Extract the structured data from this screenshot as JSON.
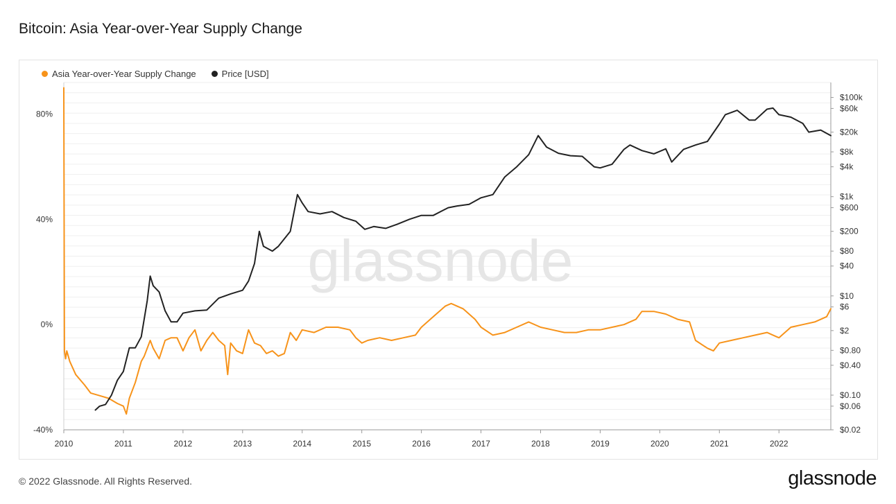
{
  "title": "Bitcoin: Asia Year-over-Year Supply Change",
  "footer": {
    "copyright": "© 2022 Glassnode. All Rights Reserved.",
    "brand": "glassnode"
  },
  "watermark": "glassnode",
  "chart_data": {
    "type": "line",
    "legend_position": "top-left",
    "grid": true,
    "x_ticks": [
      "2010",
      "2011",
      "2012",
      "2013",
      "2014",
      "2015",
      "2016",
      "2017",
      "2018",
      "2019",
      "2020",
      "2021",
      "2022"
    ],
    "x_range": [
      2010.0,
      2022.87
    ],
    "y_left": {
      "ticks": [
        "80%",
        "40%",
        "0%",
        "-40%"
      ],
      "tick_values": [
        80,
        40,
        0,
        -40
      ],
      "range": [
        -40,
        92
      ]
    },
    "y_right": {
      "scale": "log",
      "ticks": [
        "$100k",
        "$60k",
        "$20k",
        "$8k",
        "$4k",
        "$1k",
        "$600",
        "$200",
        "$80",
        "$40",
        "$10",
        "$6",
        "$2",
        "$0.80",
        "$0.40",
        "$0.10",
        "$0.06",
        "$0.02"
      ],
      "tick_values": [
        100000,
        60000,
        20000,
        8000,
        4000,
        1000,
        600,
        200,
        80,
        40,
        10,
        6,
        2,
        0.8,
        0.4,
        0.1,
        0.06,
        0.02
      ],
      "range": [
        0.02,
        200000
      ]
    },
    "series": [
      {
        "name": "Asia Year-over-Year Supply Change",
        "color": "#f7931a",
        "axis": "left",
        "x": [
          2010.0,
          2010.01,
          2010.03,
          2010.05,
          2010.1,
          2010.2,
          2010.35,
          2010.45,
          2010.6,
          2010.75,
          2010.9,
          2011.0,
          2011.05,
          2011.1,
          2011.2,
          2011.3,
          2011.35,
          2011.45,
          2011.5,
          2011.6,
          2011.7,
          2011.8,
          2011.9,
          2012.0,
          2012.1,
          2012.2,
          2012.3,
          2012.4,
          2012.5,
          2012.6,
          2012.7,
          2012.75,
          2012.8,
          2012.9,
          2013.0,
          2013.1,
          2013.2,
          2013.3,
          2013.4,
          2013.5,
          2013.6,
          2013.7,
          2013.8,
          2013.9,
          2014.0,
          2014.2,
          2014.4,
          2014.6,
          2014.8,
          2014.9,
          2015.0,
          2015.1,
          2015.3,
          2015.5,
          2015.7,
          2015.9,
          2016.0,
          2016.2,
          2016.4,
          2016.5,
          2016.7,
          2016.9,
          2017.0,
          2017.2,
          2017.4,
          2017.6,
          2017.8,
          2018.0,
          2018.2,
          2018.4,
          2018.6,
          2018.8,
          2019.0,
          2019.2,
          2019.4,
          2019.6,
          2019.7,
          2019.9,
          2020.1,
          2020.3,
          2020.5,
          2020.6,
          2020.8,
          2020.9,
          2021.0,
          2021.2,
          2021.4,
          2021.6,
          2021.8,
          2021.9,
          2022.0,
          2022.2,
          2022.4,
          2022.6,
          2022.8,
          2022.87
        ],
        "y": [
          90,
          -10,
          -13,
          -10,
          -14,
          -19,
          -23,
          -26,
          -27,
          -28,
          -30,
          -31,
          -34,
          -28,
          -22,
          -14,
          -12,
          -6,
          -9,
          -13,
          -6,
          -5,
          -5,
          -10,
          -5,
          -2,
          -10,
          -6,
          -3,
          -6,
          -8,
          -19,
          -7,
          -10,
          -11,
          -2,
          -7,
          -8,
          -11,
          -10,
          -12,
          -11,
          -3,
          -6,
          -2,
          -3,
          -1,
          -1,
          -2,
          -5,
          -7,
          -6,
          -5,
          -6,
          -5,
          -4,
          -1,
          3,
          7,
          8,
          6,
          2,
          -1,
          -4,
          -3,
          -1,
          1,
          -1,
          -2,
          -3,
          -3,
          -2,
          -2,
          -1,
          0,
          2,
          5,
          5,
          4,
          2,
          1,
          -6,
          -9,
          -10,
          -7,
          -6,
          -5,
          -4,
          -3,
          -4,
          -5,
          -1,
          0,
          1,
          3,
          6
        ]
      },
      {
        "name": "Price [USD]",
        "color": "#222222",
        "axis": "right",
        "x": [
          2010.53,
          2010.6,
          2010.7,
          2010.8,
          2010.9,
          2011.0,
          2011.1,
          2011.2,
          2011.3,
          2011.4,
          2011.45,
          2011.5,
          2011.6,
          2011.7,
          2011.8,
          2011.9,
          2012.0,
          2012.2,
          2012.4,
          2012.6,
          2012.8,
          2013.0,
          2013.1,
          2013.2,
          2013.28,
          2013.35,
          2013.5,
          2013.6,
          2013.8,
          2013.92,
          2014.0,
          2014.1,
          2014.3,
          2014.5,
          2014.7,
          2014.9,
          2015.05,
          2015.2,
          2015.4,
          2015.6,
          2015.8,
          2016.0,
          2016.2,
          2016.45,
          2016.6,
          2016.8,
          2017.0,
          2017.2,
          2017.4,
          2017.6,
          2017.8,
          2017.96,
          2018.1,
          2018.3,
          2018.5,
          2018.7,
          2018.9,
          2019.0,
          2019.2,
          2019.4,
          2019.5,
          2019.7,
          2019.9,
          2020.1,
          2020.2,
          2020.4,
          2020.6,
          2020.8,
          2021.0,
          2021.1,
          2021.3,
          2021.5,
          2021.6,
          2021.8,
          2021.9,
          2022.0,
          2022.2,
          2022.4,
          2022.5,
          2022.7,
          2022.87
        ],
        "y": [
          0.05,
          0.06,
          0.065,
          0.1,
          0.2,
          0.3,
          0.9,
          0.9,
          1.5,
          8,
          25,
          16,
          12,
          5,
          3,
          3,
          4.5,
          5,
          5.2,
          9,
          11,
          13,
          20,
          45,
          200,
          100,
          80,
          100,
          200,
          1100,
          750,
          500,
          450,
          500,
          380,
          320,
          220,
          250,
          230,
          280,
          350,
          420,
          420,
          600,
          650,
          700,
          950,
          1100,
          2500,
          4000,
          7000,
          17000,
          10000,
          7500,
          6700,
          6500,
          4000,
          3800,
          4500,
          9000,
          11000,
          8500,
          7300,
          9200,
          5000,
          9000,
          11000,
          13000,
          29000,
          45000,
          55000,
          35000,
          35000,
          58000,
          61000,
          45000,
          40000,
          30000,
          20000,
          22000,
          17000
        ]
      }
    ]
  }
}
